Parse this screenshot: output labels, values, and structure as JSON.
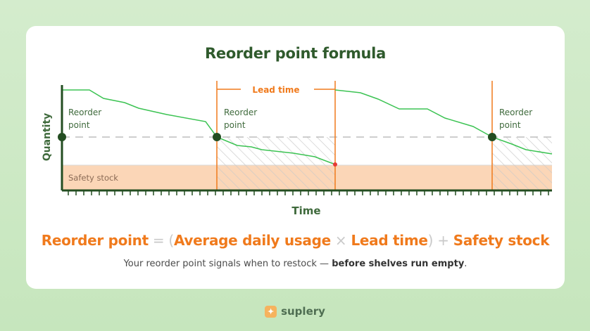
{
  "title": "Reorder point formula",
  "diagram": {
    "y_axis_label": "Quantity",
    "x_axis_label": "Time",
    "reorder_point_labels": [
      {
        "line1": "Reorder",
        "line2": "point"
      },
      {
        "line1": "Reorder",
        "line2": "point"
      },
      {
        "line1": "Reorder",
        "line2": "point"
      }
    ],
    "lead_time_label": "Lead time",
    "safety_stock_label": "Safety stock"
  },
  "formula": {
    "reorder_point": "Reorder point",
    "equals": " = ",
    "open_paren": "(",
    "average_daily_usage": "Average daily usage",
    "times": " × ",
    "lead_time": "Lead time",
    "close_paren": ")",
    "plus": " + ",
    "safety_stock": "Safety stock"
  },
  "caption": {
    "text": "Your reorder point signals when to restock — ",
    "bold": "before shelves run empty",
    "end": "."
  },
  "brand": {
    "icon": "suplery-logo-icon",
    "name": "suplery"
  },
  "colors": {
    "background": "#cfeac7",
    "title": "#2f5a2c",
    "accent_orange": "#f07a1c",
    "stock_line": "#3cc353",
    "marker": "#234d21",
    "safety_stock_fill": "#fbd6b7",
    "empty_marker": "#e53935"
  }
}
